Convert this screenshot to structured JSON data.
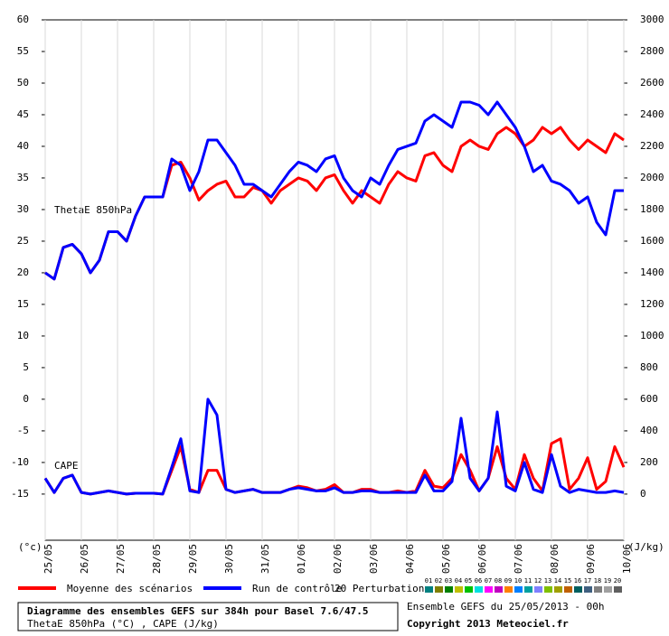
{
  "chart_data": {
    "type": "line",
    "title": "Diagramme des ensembles GEFS sur 384h pour Basel 7.6/47.5",
    "subtitle": "ThetaE 850hPa (°C) , CAPE (J/kg)",
    "run_label": "Ensemble GEFS du 25/05/2013 - 00h",
    "copyright": "Copyright 2013 Meteociel.fr",
    "y_unit": "(°c)",
    "y2_unit": "(J/kg)",
    "annotations": [
      "ThetaE 850hPa",
      "CAPE"
    ],
    "categories": [
      "25/05",
      null,
      null,
      null,
      "26/05",
      null,
      null,
      null,
      "27/05",
      null,
      null,
      null,
      "28/05",
      null,
      null,
      null,
      "29/05",
      null,
      null,
      null,
      "30/05",
      null,
      null,
      null,
      "31/05",
      null,
      null,
      null,
      "01/06",
      null,
      null,
      null,
      "02/06",
      null,
      null,
      null,
      "03/06",
      null,
      null,
      null,
      "04/06",
      null,
      null,
      null,
      "05/06",
      null,
      null,
      null,
      "06/06",
      null,
      null,
      null,
      "07/06",
      null,
      null,
      null,
      "08/06",
      null,
      null,
      null,
      "09/06",
      null,
      null,
      null,
      "10/06"
    ],
    "ylim": [
      -22.3,
      60
    ],
    "yticks": [
      -15,
      -10,
      -5,
      0,
      5,
      10,
      15,
      20,
      25,
      30,
      35,
      40,
      45,
      50,
      55,
      60
    ],
    "y2lim": [
      -292,
      3000
    ],
    "y2ticks": [
      0,
      200,
      400,
      600,
      800,
      1000,
      1200,
      1400,
      1600,
      1800,
      2000,
      2200,
      2400,
      2600,
      2800,
      3000
    ],
    "grid": "x",
    "series": [
      {
        "name": "Moyenne des scénarios",
        "color": "#ff0000",
        "axis": "y",
        "values": [
          20,
          19,
          24,
          24.5,
          23,
          20,
          22,
          26.5,
          26.5,
          25,
          29,
          32,
          32,
          32,
          37,
          37.5,
          35,
          31.5,
          33,
          34,
          34.5,
          32,
          32,
          33.5,
          33,
          31,
          33,
          34,
          35,
          34.5,
          33,
          35,
          35.5,
          33,
          31,
          33,
          32,
          31,
          34,
          36,
          35,
          34.5,
          38.5,
          39,
          37,
          36,
          40,
          41,
          40,
          39.5,
          42,
          43,
          42,
          40,
          41,
          43,
          42,
          43,
          41,
          39.5,
          41,
          40,
          39,
          42,
          41
        ]
      },
      {
        "name": "Run de contrôle",
        "color": "#0000ff",
        "axis": "y",
        "values": [
          20,
          19,
          24,
          24.5,
          23,
          20,
          22,
          26.5,
          26.5,
          25,
          29,
          32,
          32,
          32,
          38,
          37,
          33,
          36,
          41,
          41,
          39,
          37,
          34,
          34,
          33,
          32,
          34,
          36,
          37.5,
          37,
          36,
          38,
          38.5,
          35,
          33,
          32,
          35,
          34,
          37,
          39.5,
          40,
          40.5,
          44,
          45,
          44,
          43,
          47,
          47,
          46.5,
          45,
          47,
          45,
          43,
          40,
          36,
          37,
          34.5,
          34,
          33,
          31,
          32,
          28,
          26,
          33,
          33
        ]
      },
      {
        "name": "Moyenne des scénarios",
        "color": "#ff0000",
        "axis": "y2",
        "values": [
          100,
          10,
          100,
          120,
          10,
          0,
          10,
          20,
          10,
          0,
          5,
          5,
          5,
          0,
          150,
          300,
          30,
          10,
          150,
          150,
          30,
          10,
          20,
          30,
          10,
          10,
          10,
          30,
          50,
          40,
          20,
          30,
          60,
          10,
          10,
          30,
          30,
          10,
          10,
          20,
          10,
          20,
          150,
          50,
          40,
          100,
          250,
          150,
          20,
          100,
          300,
          100,
          30,
          250,
          100,
          20,
          320,
          350,
          30,
          100,
          230,
          30,
          80,
          300,
          170
        ]
      },
      {
        "name": "Run de contrôle",
        "color": "#0000ff",
        "axis": "y2",
        "values": [
          100,
          10,
          100,
          120,
          10,
          0,
          10,
          20,
          10,
          0,
          5,
          5,
          5,
          0,
          170,
          350,
          20,
          10,
          600,
          500,
          30,
          10,
          20,
          30,
          10,
          10,
          10,
          30,
          40,
          30,
          20,
          20,
          40,
          10,
          10,
          20,
          20,
          10,
          10,
          10,
          10,
          10,
          120,
          20,
          20,
          80,
          480,
          100,
          20,
          100,
          520,
          50,
          20,
          200,
          30,
          10,
          250,
          50,
          10,
          30,
          20,
          10,
          10,
          20,
          10
        ]
      }
    ],
    "perturbations": {
      "label": "20 Perturbations",
      "codes": [
        "01",
        "02",
        "03",
        "04",
        "05",
        "06",
        "07",
        "08",
        "09",
        "10",
        "11",
        "12",
        "13",
        "14",
        "15",
        "16",
        "17",
        "18",
        "19",
        "20"
      ],
      "colors": [
        "#008080",
        "#808000",
        "#008000",
        "#c0c000",
        "#00c000",
        "#00e0e0",
        "#ff00ff",
        "#c000c0",
        "#ff8000",
        "#0080ff",
        "#00a0a0",
        "#8080ff",
        "#80c000",
        "#a0a000",
        "#c06000",
        "#006060",
        "#406080",
        "#808080",
        "#a0a0a0",
        "#606060"
      ]
    }
  }
}
